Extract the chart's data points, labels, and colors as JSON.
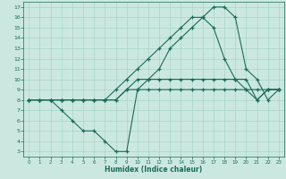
{
  "xlabel": "Humidex (Indice chaleur)",
  "background_color": "#cbe8e0",
  "grid_color": "#a8d4c8",
  "line_color": "#1a6b5a",
  "xlim": [
    -0.5,
    23.5
  ],
  "ylim": [
    2.5,
    17.5
  ],
  "xticks": [
    0,
    1,
    2,
    3,
    4,
    5,
    6,
    7,
    8,
    9,
    10,
    11,
    12,
    13,
    14,
    15,
    16,
    17,
    18,
    19,
    20,
    21,
    22,
    23
  ],
  "yticks": [
    3,
    4,
    5,
    6,
    7,
    8,
    9,
    10,
    11,
    12,
    13,
    14,
    15,
    16,
    17
  ],
  "line1_x": [
    0,
    1,
    2,
    3,
    4,
    5,
    6,
    7,
    8,
    9,
    10,
    11,
    12,
    13,
    14,
    15,
    16,
    17,
    18,
    19,
    20,
    21,
    22,
    23
  ],
  "line1_y": [
    8,
    8,
    8,
    8,
    8,
    8,
    8,
    8,
    8,
    9,
    9,
    9,
    9,
    9,
    9,
    9,
    9,
    9,
    9,
    9,
    9,
    9,
    9,
    9
  ],
  "line2_x": [
    0,
    1,
    2,
    3,
    4,
    5,
    6,
    7,
    8,
    9,
    10,
    11,
    12,
    13,
    14,
    15,
    16,
    17,
    18,
    19,
    20,
    21,
    22,
    23
  ],
  "line2_y": [
    8,
    8,
    8,
    8,
    8,
    8,
    8,
    8,
    8,
    9,
    10,
    10,
    10,
    10,
    10,
    10,
    10,
    10,
    10,
    10,
    10,
    8,
    9,
    9
  ],
  "line3_x": [
    0,
    2,
    3,
    4,
    5,
    6,
    7,
    8,
    9,
    10,
    11,
    12,
    13,
    14,
    15,
    16,
    17,
    18,
    19,
    20,
    21,
    22,
    23
  ],
  "line3_y": [
    8,
    8,
    7,
    6,
    5,
    5,
    4,
    3,
    3,
    9,
    10,
    11,
    13,
    14,
    15,
    16,
    17,
    17,
    16,
    11,
    10,
    8,
    9
  ],
  "line4_x": [
    0,
    1,
    2,
    3,
    4,
    5,
    6,
    7,
    8,
    9,
    10,
    11,
    12,
    13,
    14,
    15,
    16,
    17,
    18,
    19,
    20,
    21,
    22,
    23
  ],
  "line4_y": [
    8,
    8,
    8,
    8,
    8,
    8,
    8,
    8,
    9,
    10,
    11,
    12,
    13,
    14,
    15,
    16,
    16,
    15,
    12,
    10,
    9,
    8,
    9,
    9
  ]
}
